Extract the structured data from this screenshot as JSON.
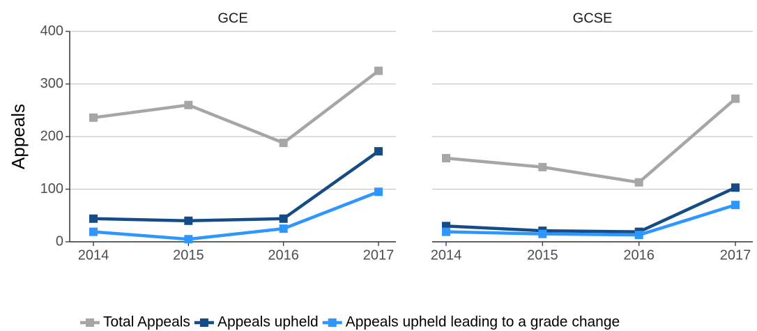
{
  "chart_data": [
    {
      "type": "line",
      "title": "GCE",
      "y_label": "Appeals",
      "categories": [
        "2014",
        "2015",
        "2016",
        "2017"
      ],
      "series": [
        {
          "name": "Total Appeals",
          "color": "#a6a6a6",
          "values": [
            236,
            260,
            188,
            325
          ]
        },
        {
          "name": "Appeals upheld",
          "color": "#154c86",
          "values": [
            44,
            40,
            44,
            172
          ]
        },
        {
          "name": "Appeals upheld leading to a grade change",
          "color": "#2e96ff",
          "values": [
            19,
            5,
            25,
            95
          ]
        }
      ],
      "ylim": [
        0,
        400
      ],
      "yticks": [
        0,
        100,
        200,
        300,
        400
      ],
      "grid": true
    },
    {
      "type": "line",
      "title": "GCSE",
      "categories": [
        "2014",
        "2015",
        "2016",
        "2017"
      ],
      "series": [
        {
          "name": "Total Appeals",
          "color": "#a6a6a6",
          "values": [
            159,
            142,
            113,
            272
          ]
        },
        {
          "name": "Appeals upheld",
          "color": "#154c86",
          "values": [
            30,
            21,
            19,
            103
          ]
        },
        {
          "name": "Appeals upheld leading to a grade change",
          "color": "#2e96ff",
          "values": [
            19,
            15,
            13,
            70
          ]
        }
      ],
      "ylim": [
        0,
        400
      ],
      "yticks": [
        0,
        100,
        200,
        300,
        400
      ],
      "grid": true
    }
  ]
}
